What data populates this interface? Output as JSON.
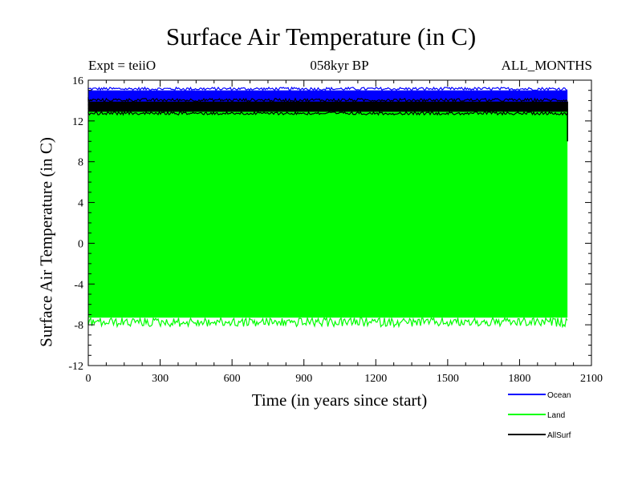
{
  "chart_data": {
    "type": "line",
    "title": "Surface Air Temperature (in C)",
    "subtitle": "058kyr BP",
    "experiment_label": "Expt = teiiO",
    "season_label": "ALL_MONTHS",
    "xlabel": "Time (in years since start)",
    "ylabel": "Surface Air Temperature (in C)",
    "xlim": [
      0,
      2100
    ],
    "ylim": [
      -12,
      16
    ],
    "xticks": [
      0,
      300,
      600,
      900,
      1200,
      1500,
      1800,
      2100
    ],
    "yticks": [
      -12,
      -8,
      -4,
      0,
      4,
      8,
      12,
      16
    ],
    "legend_position": "bottom-right",
    "series": [
      {
        "name": "Ocean",
        "color": "#0000ff",
        "x_range": [
          0,
          2000
        ],
        "band_low": 13.6,
        "band_high": 15.0,
        "envelope_min": 13.5,
        "envelope_max": 15.3
      },
      {
        "name": "Land",
        "color": "#00ff00",
        "x_range": [
          0,
          2000
        ],
        "band_low": -7.3,
        "band_high": 13.2,
        "envelope_min": -8.2,
        "envelope_max": 13.5,
        "end_value": 10.0
      },
      {
        "name": "AllSurf",
        "color": "#000000",
        "x_range": [
          0,
          2000
        ],
        "band_low": 12.9,
        "band_high": 13.9,
        "envelope_min": 12.6,
        "envelope_max": 14.2,
        "end_value": 10.0
      }
    ]
  }
}
